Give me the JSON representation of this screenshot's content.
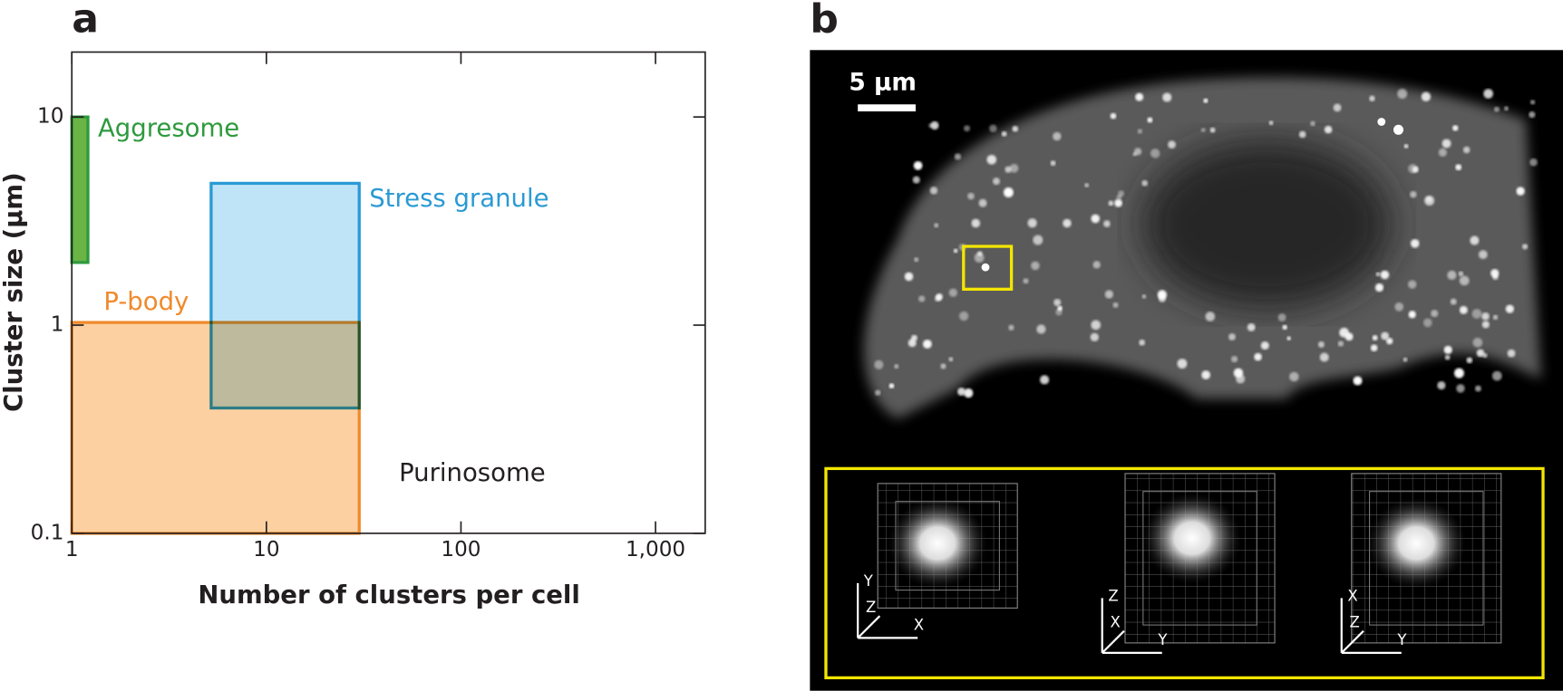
{
  "chart_data": {
    "type": "range",
    "panel_label": "a",
    "x_label": "Number of clusters per cell",
    "y_label": "Cluster size (µm)",
    "xscale": "log",
    "yscale": "log",
    "xlim": [
      1,
      1800
    ],
    "ylim": [
      0.1,
      20.5
    ],
    "xticks": [
      1,
      10,
      100,
      {
        "value": 1000,
        "label": "1,000"
      }
    ],
    "yticks": [
      0.1,
      1,
      10
    ],
    "series": [
      {
        "name": "P-body",
        "color": "#fdd0a2",
        "edge": "#f08a2c",
        "x": [
          1,
          30
        ],
        "y": [
          0.1,
          1.03
        ]
      },
      {
        "name": "Aggresome",
        "color": "#6ab445",
        "edge": "#2e9a3e",
        "x": [
          1,
          1.21
        ],
        "y": [
          2,
          10
        ]
      },
      {
        "name": "Stress granule",
        "color": "#bfe4f8",
        "edge": "#2a9ad4",
        "x": [
          5.2,
          30
        ],
        "y": [
          0.4,
          4.8
        ]
      }
    ],
    "annotations": [
      "Purinosome"
    ]
  },
  "image_panel": {
    "panel_label": "b",
    "scale_bar": "5 µm",
    "insets": [
      {
        "up": "Y",
        "diag": "Z",
        "right": "X"
      },
      {
        "up": "Z",
        "diag": "X",
        "right": "Y"
      },
      {
        "up": "X",
        "diag": "Z",
        "right": "Y"
      }
    ]
  }
}
